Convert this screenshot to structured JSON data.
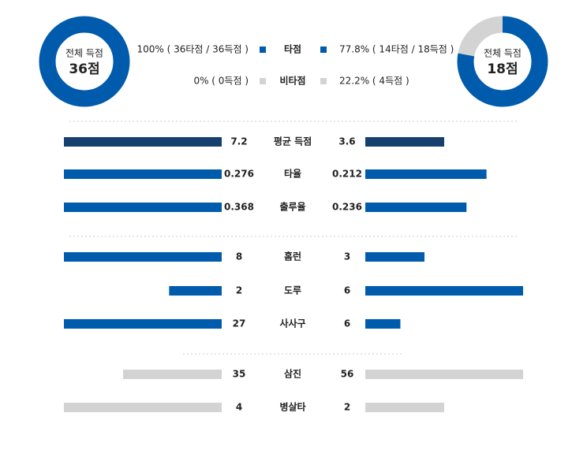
{
  "summary": {
    "left": {
      "title": "전체 득점",
      "total": "36점"
    },
    "right": {
      "title": "전체 득점",
      "total": "18점"
    },
    "legend": [
      {
        "label": "타점",
        "color": "#005bac",
        "left": {
          "value": 100,
          "label": "100% ( 36타점 / 36득점 )"
        },
        "right": {
          "value": 77.8,
          "label": "77.8% ( 14타점 / 18득점 )"
        }
      },
      {
        "label": "비타점",
        "color": "#d3d3d3",
        "left": {
          "value": 0,
          "label": "0% ( 0득점 )"
        },
        "right": {
          "value": 22.2,
          "label": "22.2% ( 4득점 )"
        }
      }
    ]
  },
  "stats": [
    {
      "label": "평균 득점",
      "left": 7.2,
      "right": 3.6,
      "color": "#153f6e"
    },
    {
      "label": "타율",
      "left": 0.276,
      "right": 0.212,
      "color": "#005bac"
    },
    {
      "label": "출루율",
      "left": 0.368,
      "right": 0.236,
      "color": "#005bac"
    },
    {
      "label": "홈런",
      "left": 8,
      "right": 3,
      "color": "#005bac"
    },
    {
      "label": "도루",
      "left": 2,
      "right": 6,
      "color": "#005bac"
    },
    {
      "label": "사사구",
      "left": 27,
      "right": 6,
      "color": "#005bac"
    },
    {
      "label": "삼진",
      "left": 35,
      "right": 56,
      "color": "#d3d3d3"
    },
    {
      "label": "병살타",
      "left": 4,
      "right": 2,
      "color": "#d3d3d3"
    }
  ]
}
